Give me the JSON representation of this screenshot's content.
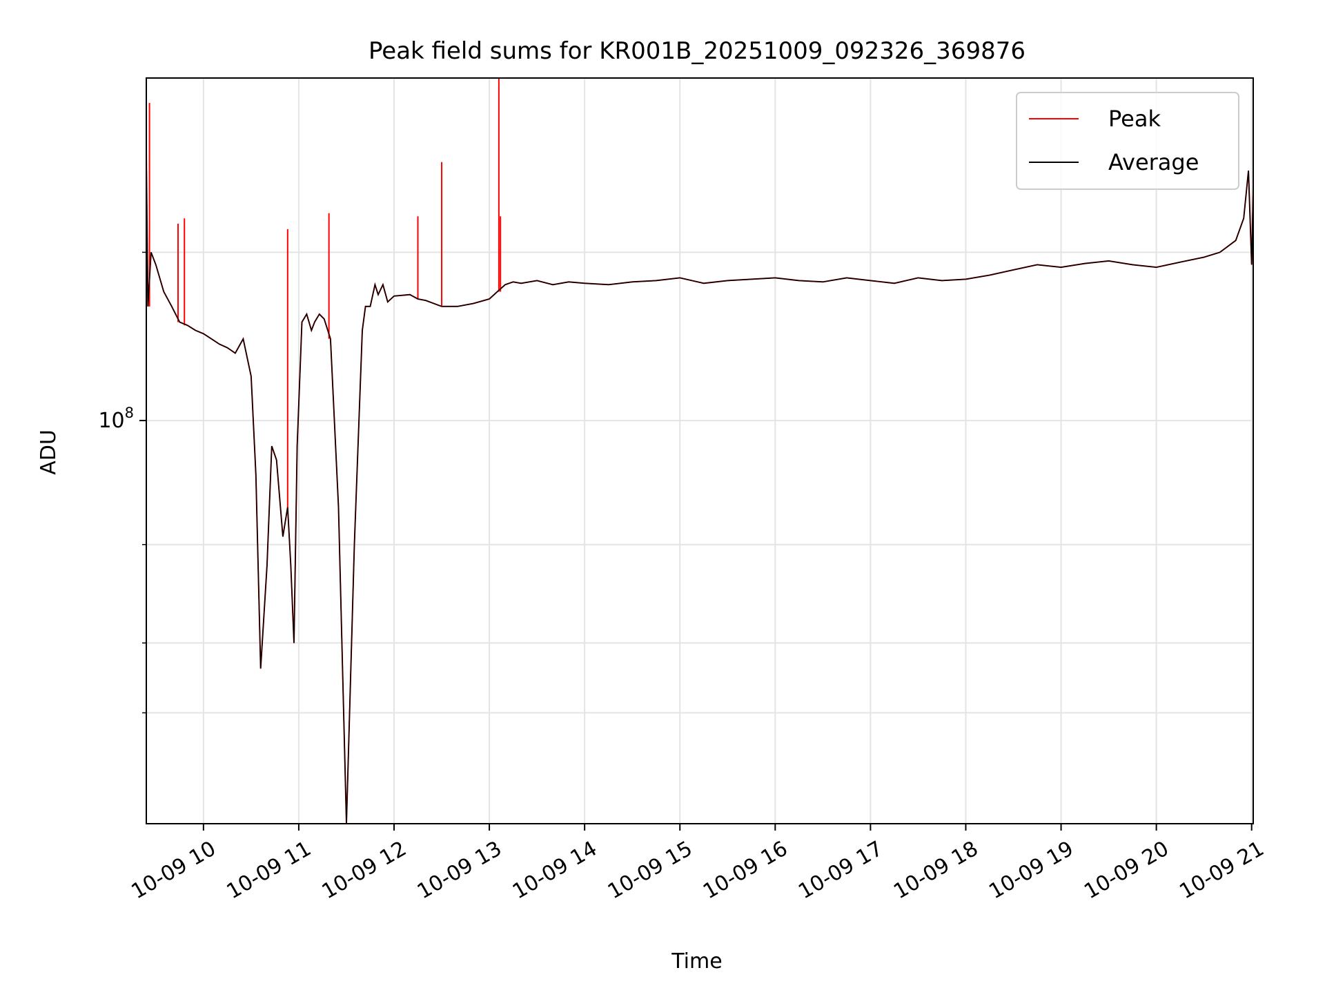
{
  "chart_data": {
    "type": "line",
    "title": "Peak field sums for KR001B_20251009_092326_369876",
    "xlabel": "Time",
    "ylabel": "ADU",
    "y_scale": "log",
    "ylim": [
      19000000,
      410000000
    ],
    "xlim": [
      "2025-10-09 09:24",
      "2025-10-09 21:01"
    ],
    "grid": true,
    "legend_position": "upper right",
    "x_ticks": [
      {
        "t": "2025-10-09 10:00",
        "label": "10-09 10"
      },
      {
        "t": "2025-10-09 11:00",
        "label": "10-09 11"
      },
      {
        "t": "2025-10-09 12:00",
        "label": "10-09 12"
      },
      {
        "t": "2025-10-09 13:00",
        "label": "10-09 13"
      },
      {
        "t": "2025-10-09 14:00",
        "label": "10-09 14"
      },
      {
        "t": "2025-10-09 15:00",
        "label": "10-09 15"
      },
      {
        "t": "2025-10-09 16:00",
        "label": "10-09 16"
      },
      {
        "t": "2025-10-09 17:00",
        "label": "10-09 17"
      },
      {
        "t": "2025-10-09 18:00",
        "label": "10-09 18"
      },
      {
        "t": "2025-10-09 19:00",
        "label": "10-09 19"
      },
      {
        "t": "2025-10-09 20:00",
        "label": "10-09 20"
      },
      {
        "t": "2025-10-09 21:00",
        "label": "10-09 21"
      }
    ],
    "y_major_ticks": [
      {
        "value": 100000000,
        "base": "10",
        "exp": "8"
      }
    ],
    "y_minor_ticks": [
      30000000,
      40000000,
      60000000,
      200000000
    ],
    "series": [
      {
        "name": "Average",
        "color": "#000000",
        "x": [
          "2025-10-09 09:24",
          "2025-10-09 09:25",
          "2025-10-09 09:27",
          "2025-10-09 09:30",
          "2025-10-09 09:35",
          "2025-10-09 09:40",
          "2025-10-09 09:45",
          "2025-10-09 09:50",
          "2025-10-09 09:55",
          "2025-10-09 10:00",
          "2025-10-09 10:05",
          "2025-10-09 10:10",
          "2025-10-09 10:15",
          "2025-10-09 10:20",
          "2025-10-09 10:25",
          "2025-10-09 10:30",
          "2025-10-09 10:33",
          "2025-10-09 10:36",
          "2025-10-09 10:40",
          "2025-10-09 10:43",
          "2025-10-09 10:46",
          "2025-10-09 10:50",
          "2025-10-09 10:53",
          "2025-10-09 10:55",
          "2025-10-09 10:57",
          "2025-10-09 10:59",
          "2025-10-09 11:02",
          "2025-10-09 11:05",
          "2025-10-09 11:08",
          "2025-10-09 11:10",
          "2025-10-09 11:13",
          "2025-10-09 11:16",
          "2025-10-09 11:20",
          "2025-10-09 11:25",
          "2025-10-09 11:30",
          "2025-10-09 11:35",
          "2025-10-09 11:40",
          "2025-10-09 11:42",
          "2025-10-09 11:45",
          "2025-10-09 11:48",
          "2025-10-09 11:50",
          "2025-10-09 11:53",
          "2025-10-09 11:56",
          "2025-10-09 12:00",
          "2025-10-09 12:10",
          "2025-10-09 12:15",
          "2025-10-09 12:20",
          "2025-10-09 12:30",
          "2025-10-09 12:40",
          "2025-10-09 12:50",
          "2025-10-09 13:00",
          "2025-10-09 13:05",
          "2025-10-09 13:10",
          "2025-10-09 13:15",
          "2025-10-09 13:20",
          "2025-10-09 13:30",
          "2025-10-09 13:40",
          "2025-10-09 13:50",
          "2025-10-09 14:00",
          "2025-10-09 14:15",
          "2025-10-09 14:30",
          "2025-10-09 14:45",
          "2025-10-09 15:00",
          "2025-10-09 15:15",
          "2025-10-09 15:30",
          "2025-10-09 15:45",
          "2025-10-09 16:00",
          "2025-10-09 16:15",
          "2025-10-09 16:30",
          "2025-10-09 16:45",
          "2025-10-09 17:00",
          "2025-10-09 17:15",
          "2025-10-09 17:30",
          "2025-10-09 17:45",
          "2025-10-09 18:00",
          "2025-10-09 18:15",
          "2025-10-09 18:30",
          "2025-10-09 18:45",
          "2025-10-09 19:00",
          "2025-10-09 19:15",
          "2025-10-09 19:30",
          "2025-10-09 19:45",
          "2025-10-09 20:00",
          "2025-10-09 20:15",
          "2025-10-09 20:30",
          "2025-10-09 20:40",
          "2025-10-09 20:50",
          "2025-10-09 20:55",
          "2025-10-09 20:58",
          "2025-10-09 21:00",
          "2025-10-09 21:01"
        ],
        "y": [
          300000000,
          160000000,
          200000000,
          190000000,
          170000000,
          160000000,
          150000000,
          148000000,
          145000000,
          143000000,
          140000000,
          137000000,
          135000000,
          132000000,
          140000000,
          120000000,
          80000000,
          36000000,
          55000000,
          90000000,
          85000000,
          62000000,
          70000000,
          55000000,
          40000000,
          90000000,
          150000000,
          155000000,
          145000000,
          150000000,
          155000000,
          152000000,
          140000000,
          70000000,
          19000000,
          60000000,
          145000000,
          160000000,
          160000000,
          175000000,
          168000000,
          175000000,
          163000000,
          167000000,
          168000000,
          165000000,
          164000000,
          160000000,
          160000000,
          162000000,
          165000000,
          170000000,
          175000000,
          177000000,
          176000000,
          178000000,
          175000000,
          177000000,
          176000000,
          175000000,
          177000000,
          178000000,
          180000000,
          176000000,
          178000000,
          179000000,
          180000000,
          178000000,
          177000000,
          180000000,
          178000000,
          176000000,
          180000000,
          178000000,
          179000000,
          182000000,
          186000000,
          190000000,
          188000000,
          191000000,
          193000000,
          190000000,
          188000000,
          192000000,
          196000000,
          200000000,
          210000000,
          230000000,
          280000000,
          190000000,
          260000000
        ]
      },
      {
        "name": "Peak",
        "color": "#ff0000",
        "spikes": [
          {
            "t": "2025-10-09 09:26",
            "value": 370000000
          },
          {
            "t": "2025-10-09 09:44",
            "value": 225000000
          },
          {
            "t": "2025-10-09 09:48",
            "value": 230000000
          },
          {
            "t": "2025-10-09 10:53",
            "value": 220000000
          },
          {
            "t": "2025-10-09 11:19",
            "value": 235000000
          },
          {
            "t": "2025-10-09 12:15",
            "value": 232000000
          },
          {
            "t": "2025-10-09 12:30",
            "value": 290000000
          },
          {
            "t": "2025-10-09 13:06",
            "value": 410000000
          },
          {
            "t": "2025-10-09 13:07",
            "value": 232000000
          }
        ]
      }
    ]
  }
}
